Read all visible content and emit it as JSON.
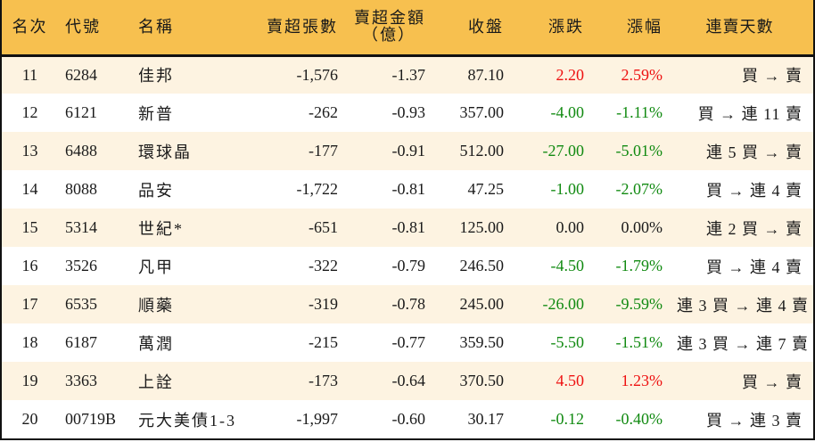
{
  "header": {
    "rank": "名次",
    "code": "代號",
    "name": "名稱",
    "sell_qty": "賣超張數",
    "sell_amount_line1": "賣超金額",
    "sell_amount_line2": "（億）",
    "close": "收盤",
    "change": "漲跌",
    "change_pct": "漲幅",
    "streak": "連賣天數"
  },
  "colors": {
    "header_bg": "#f7c04f",
    "row_odd_bg": "#fdf3e1",
    "row_even_bg": "#ffffff",
    "up": "#ee1111",
    "down": "#118a11"
  },
  "rows": [
    {
      "rank": "11",
      "code": "6284",
      "name": "佳邦",
      "sell_qty": "-1,576",
      "sell_amount": "-1.37",
      "close": "87.10",
      "change": "2.20",
      "change_pct": "2.59%",
      "trend": "up",
      "streak": "買 → 賣"
    },
    {
      "rank": "12",
      "code": "6121",
      "name": "新普",
      "sell_qty": "-262",
      "sell_amount": "-0.93",
      "close": "357.00",
      "change": "-4.00",
      "change_pct": "-1.11%",
      "trend": "down",
      "streak": "買 → 連 11 賣"
    },
    {
      "rank": "13",
      "code": "6488",
      "name": "環球晶",
      "sell_qty": "-177",
      "sell_amount": "-0.91",
      "close": "512.00",
      "change": "-27.00",
      "change_pct": "-5.01%",
      "trend": "down",
      "streak": "連 5 買 → 賣"
    },
    {
      "rank": "14",
      "code": "8088",
      "name": "品安",
      "sell_qty": "-1,722",
      "sell_amount": "-0.81",
      "close": "47.25",
      "change": "-1.00",
      "change_pct": "-2.07%",
      "trend": "down",
      "streak": "買 → 連 4 賣"
    },
    {
      "rank": "15",
      "code": "5314",
      "name": "世紀*",
      "sell_qty": "-651",
      "sell_amount": "-0.81",
      "close": "125.00",
      "change": "0.00",
      "change_pct": "0.00%",
      "trend": "flat",
      "streak": "連 2 買 → 賣"
    },
    {
      "rank": "16",
      "code": "3526",
      "name": "凡甲",
      "sell_qty": "-322",
      "sell_amount": "-0.79",
      "close": "246.50",
      "change": "-4.50",
      "change_pct": "-1.79%",
      "trend": "down",
      "streak": "買 → 連 4 賣"
    },
    {
      "rank": "17",
      "code": "6535",
      "name": "順藥",
      "sell_qty": "-319",
      "sell_amount": "-0.78",
      "close": "245.00",
      "change": "-26.00",
      "change_pct": "-9.59%",
      "trend": "down",
      "streak": "連 3 買 → 連 4 賣"
    },
    {
      "rank": "18",
      "code": "6187",
      "name": "萬潤",
      "sell_qty": "-215",
      "sell_amount": "-0.77",
      "close": "359.50",
      "change": "-5.50",
      "change_pct": "-1.51%",
      "trend": "down",
      "streak": "連 3 買 → 連 7 賣"
    },
    {
      "rank": "19",
      "code": "3363",
      "name": "上詮",
      "sell_qty": "-173",
      "sell_amount": "-0.64",
      "close": "370.50",
      "change": "4.50",
      "change_pct": "1.23%",
      "trend": "up",
      "streak": "買 → 賣"
    },
    {
      "rank": "20",
      "code": "00719B",
      "name": "元大美債1-3",
      "sell_qty": "-1,997",
      "sell_amount": "-0.60",
      "close": "30.17",
      "change": "-0.12",
      "change_pct": "-0.40%",
      "trend": "down",
      "streak": "買 → 連 3 賣"
    }
  ]
}
